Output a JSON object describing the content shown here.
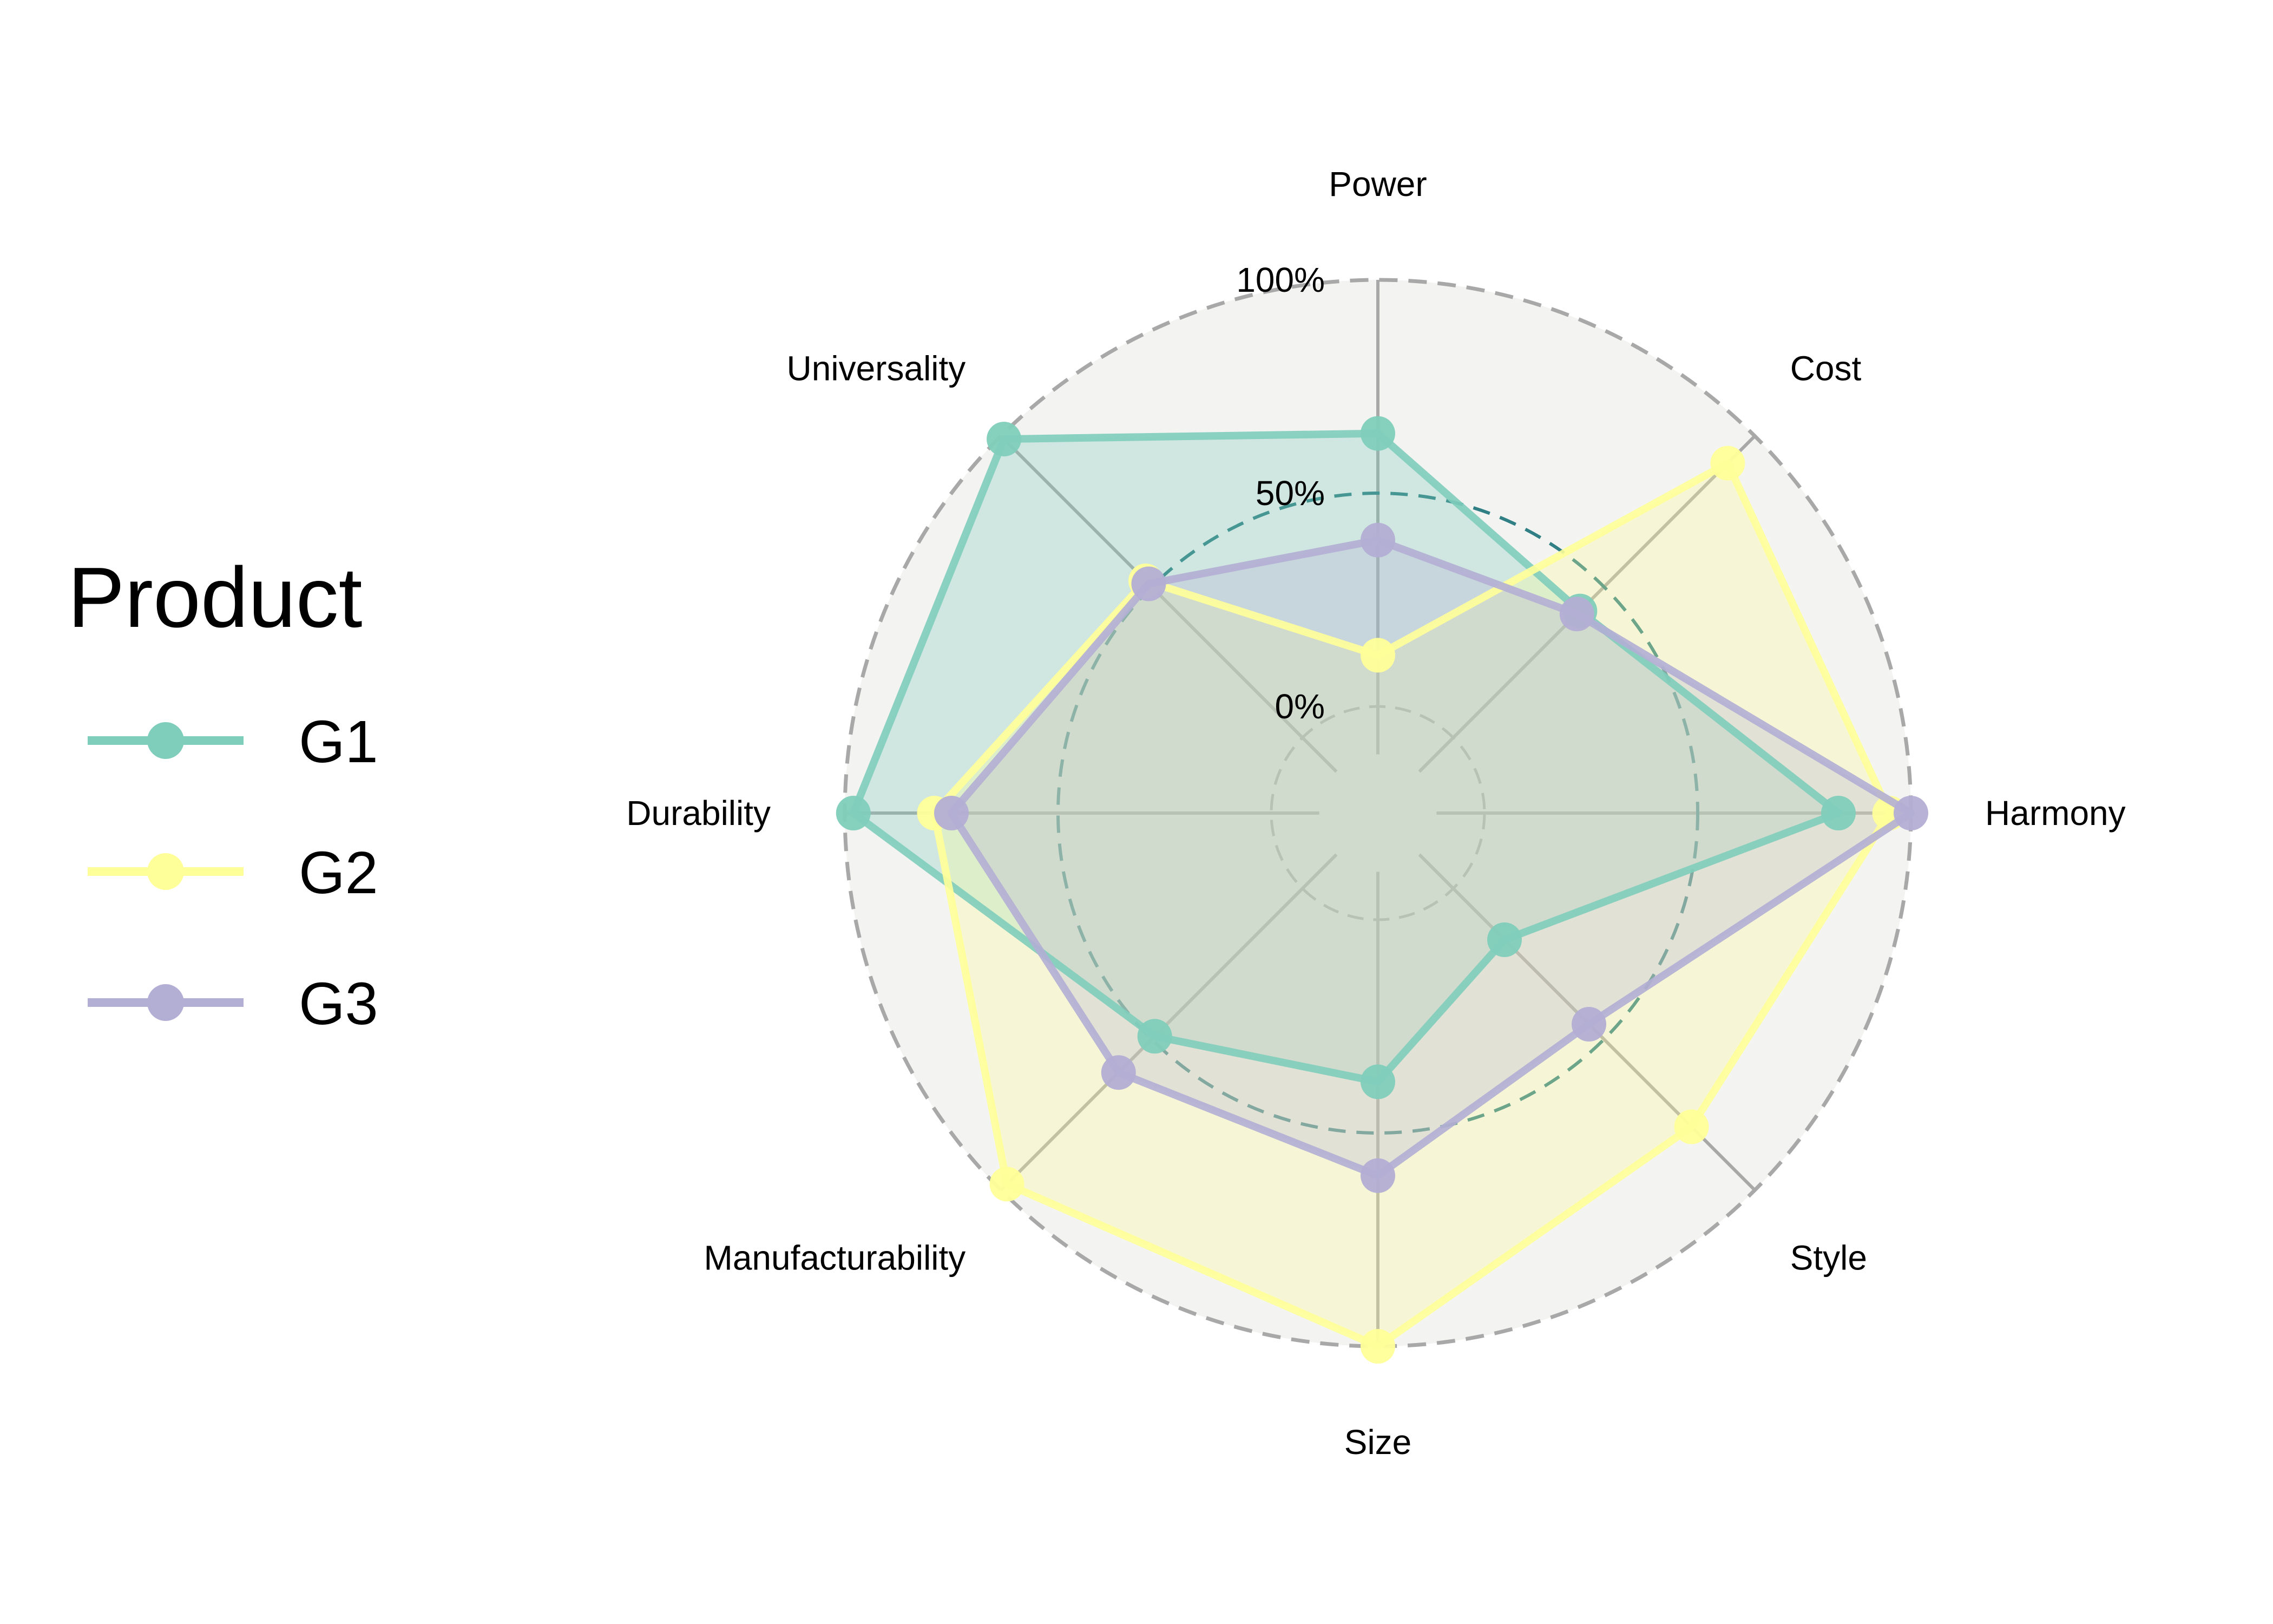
{
  "chart_data": {
    "type": "radar",
    "categories": [
      "Power",
      "Cost",
      "Harmony",
      "Style",
      "Size",
      "Manufacturability",
      "Durability",
      "Universality"
    ],
    "series": [
      {
        "name": "G1",
        "color": "#7fcdbb",
        "values": [
          0.64,
          0.42,
          0.83,
          0.17,
          0.38,
          0.49,
          0.98,
          0.99
        ]
      },
      {
        "name": "G2",
        "color": "#ffff99",
        "values": [
          0.12,
          0.91,
          0.95,
          0.79,
          1.0,
          0.98,
          0.79,
          0.52
        ]
      },
      {
        "name": "G3",
        "color": "#b3aed4",
        "values": [
          0.39,
          0.41,
          1.0,
          0.45,
          0.6,
          0.61,
          0.75,
          0.51
        ]
      }
    ],
    "rlim": [
      -0.25,
      1.0
    ],
    "ring_labels": [
      "100%",
      "50%",
      "0%"
    ],
    "grid": true,
    "legend": {
      "title": "Product",
      "position": "left"
    }
  }
}
